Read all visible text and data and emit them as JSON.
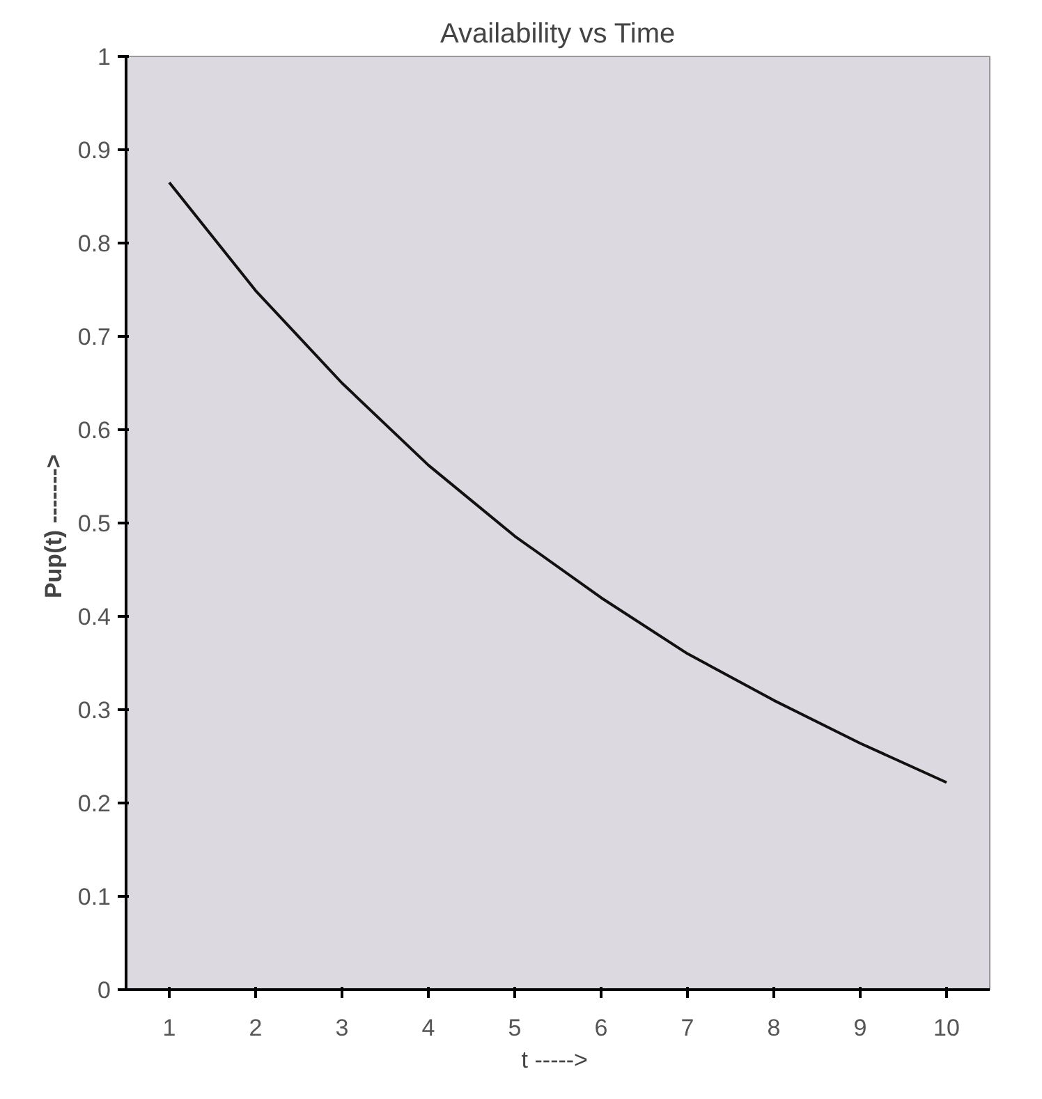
{
  "chart_data": {
    "type": "line",
    "title": "Availability vs Time",
    "xlabel": "t  ----->",
    "ylabel": "Pup(t)  ------->",
    "categories": [
      "1",
      "2",
      "3",
      "4",
      "5",
      "6",
      "7",
      "8",
      "9",
      "10"
    ],
    "series": [
      {
        "color": "#111111",
        "values": [
          0.865,
          0.749,
          0.65,
          0.562,
          0.486,
          0.42,
          0.36,
          0.31,
          0.264,
          0.222
        ]
      }
    ],
    "ylim": [
      0,
      1
    ],
    "yticks": [
      0,
      0.1,
      0.2,
      0.3,
      0.4,
      0.5,
      0.6,
      0.7,
      0.8,
      0.9,
      1
    ],
    "grid": false,
    "marker": "none",
    "line_style": "solid"
  }
}
